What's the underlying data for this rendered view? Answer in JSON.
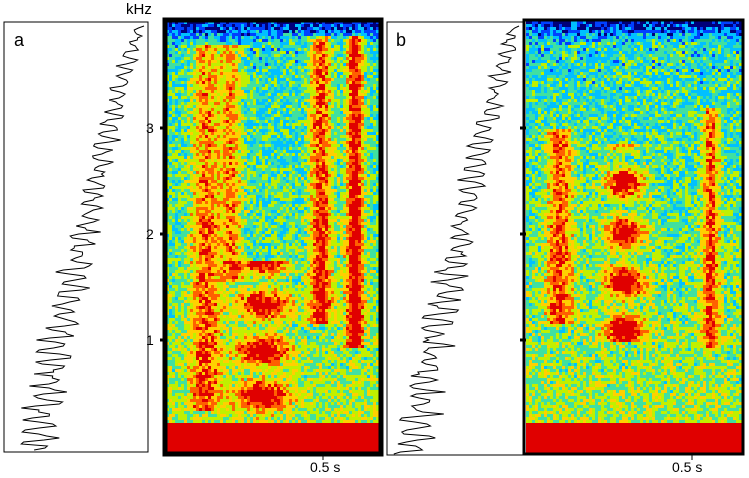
{
  "panels": [
    {
      "label": "a",
      "time_label": "0.5 s"
    },
    {
      "label": "b",
      "time_label": "0.5 s"
    }
  ],
  "frequency_axis": {
    "unit": "kHz",
    "ticks": [
      "1",
      "2",
      "3"
    ]
  },
  "colormap": [
    "#00007a",
    "#0040ff",
    "#00c0ff",
    "#40e0a0",
    "#c0f000",
    "#ffd000",
    "#ff6000",
    "#e00000"
  ],
  "chart_data": [
    {
      "type": "heatmap",
      "panel": "a",
      "x_tick": {
        "value": 0.5,
        "label": "0.5 s"
      },
      "y_unit": "kHz",
      "y_ticks": [
        1,
        2,
        3
      ],
      "ylim": [
        0,
        4
      ],
      "grid": false
    },
    {
      "type": "heatmap",
      "panel": "b",
      "x_tick": {
        "value": 0.5,
        "label": "0.5 s"
      },
      "y_unit": "kHz",
      "y_ticks": [
        1,
        2,
        3
      ],
      "ylim": [
        0,
        4
      ],
      "grid": false
    }
  ]
}
